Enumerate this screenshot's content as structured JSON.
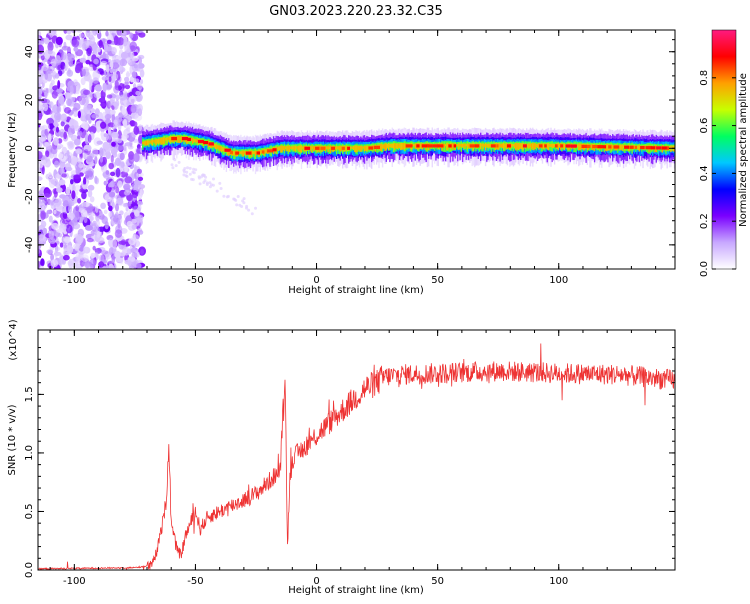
{
  "title": "GN03.2023.220.23.32.C35",
  "chart_data": [
    {
      "type": "heatmap",
      "xlabel": "Height of straight line (km)",
      "ylabel": "Frequency (Hz)",
      "xlim": [
        -115,
        148
      ],
      "ylim": [
        -50,
        49
      ],
      "x_ticks": [
        -100,
        -50,
        0,
        50,
        100
      ],
      "y_ticks": [
        -40,
        -20,
        0,
        20,
        40
      ],
      "colorbar": {
        "label": "Normalized spectral amplitude",
        "range": [
          0,
          1
        ],
        "ticks": [
          "0.0",
          "0.2",
          "0.4",
          "0.6",
          "0.8"
        ],
        "colors": [
          "#ffffff",
          "#c8a8ff",
          "#7a00ff",
          "#0000ff",
          "#00c8ff",
          "#00ff60",
          "#c8ff00",
          "#ffa000",
          "#ff0000",
          "#ff1a80"
        ]
      },
      "noise_region_x": [
        -115,
        -72
      ],
      "signal_track": {
        "x": [
          -72,
          -65,
          -60,
          -55,
          -50,
          -45,
          -40,
          -35,
          -30,
          -25,
          -20,
          -15,
          -10,
          0,
          20,
          30,
          60,
          100,
          148
        ],
        "y": [
          2,
          3,
          4,
          4,
          3,
          2,
          0,
          -2,
          -2,
          -2,
          -1,
          0,
          0,
          0,
          0,
          1,
          1,
          1,
          0
        ]
      },
      "grid": false
    },
    {
      "type": "line",
      "xlabel": "Height of straight line (km)",
      "ylabel": "SNR (10 * v/v)",
      "scale_label": "(x10^4)",
      "xlim": [
        -115,
        148
      ],
      "ylim": [
        0,
        2.05
      ],
      "x_ticks": [
        -100,
        -50,
        0,
        50,
        100
      ],
      "y_ticks": [
        "0.0",
        "0.5",
        "1.0",
        "1.5"
      ],
      "series_color": "#ee3333",
      "series": [
        {
          "x": [
            -115,
            -75,
            -68,
            -66,
            -64,
            -62,
            -61,
            -60,
            -58,
            -56,
            -54,
            -50,
            -48,
            -45,
            -40,
            -35,
            -30,
            -25,
            -20,
            -15,
            -13,
            -12,
            -11,
            -10,
            -5,
            0,
            5,
            10,
            15,
            20,
            25,
            28,
            35,
            50,
            75,
            100,
            125,
            148
          ],
          "y": [
            0.01,
            0.02,
            0.04,
            0.15,
            0.35,
            0.6,
            1.1,
            0.4,
            0.2,
            0.12,
            0.3,
            0.5,
            0.35,
            0.45,
            0.5,
            0.55,
            0.6,
            0.65,
            0.75,
            0.85,
            1.7,
            0.2,
            0.8,
            0.95,
            1.05,
            1.15,
            1.25,
            1.35,
            1.45,
            1.55,
            1.6,
            1.65,
            1.67,
            1.68,
            1.7,
            1.68,
            1.67,
            1.62
          ]
        }
      ],
      "grid": false
    }
  ]
}
